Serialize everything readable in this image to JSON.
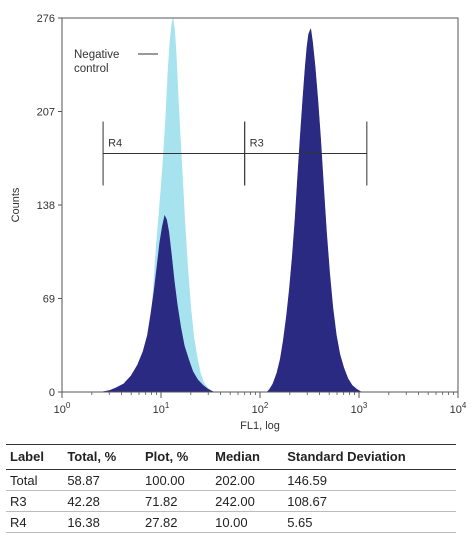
{
  "chart_data": {
    "type": "area",
    "xlabel": "FL1, log",
    "ylabel": "Counts",
    "x_scale": "log",
    "xlim": [
      1,
      10000
    ],
    "ylim": [
      0,
      276
    ],
    "x_ticks": [
      {
        "value": 1,
        "base": "10",
        "exp": "0"
      },
      {
        "value": 10,
        "base": "10",
        "exp": "1"
      },
      {
        "value": 100,
        "base": "10",
        "exp": "2"
      },
      {
        "value": 1000,
        "base": "10",
        "exp": "3"
      },
      {
        "value": 10000,
        "base": "10",
        "exp": "4"
      }
    ],
    "y_ticks": [
      0,
      69,
      138,
      207,
      276
    ],
    "grid": false,
    "series": [
      {
        "name": "Negative control",
        "color": "#a6e3ef",
        "points": [
          [
            5.0,
            0
          ],
          [
            5.6,
            2
          ],
          [
            6.3,
            8
          ],
          [
            7.0,
            22
          ],
          [
            7.7,
            45
          ],
          [
            8.3,
            72
          ],
          [
            8.9,
            105
          ],
          [
            9.5,
            130
          ],
          [
            10.0,
            150
          ],
          [
            10.6,
            175
          ],
          [
            11.2,
            205
          ],
          [
            11.8,
            238
          ],
          [
            12.3,
            258
          ],
          [
            12.8,
            270
          ],
          [
            13.2,
            276
          ],
          [
            13.7,
            268
          ],
          [
            14.2,
            250
          ],
          [
            14.8,
            222
          ],
          [
            15.6,
            190
          ],
          [
            16.5,
            158
          ],
          [
            17.5,
            122
          ],
          [
            18.7,
            90
          ],
          [
            20.0,
            62
          ],
          [
            21.5,
            40
          ],
          [
            23.2,
            25
          ],
          [
            25.0,
            14
          ],
          [
            27.0,
            7
          ],
          [
            29.5,
            3
          ],
          [
            32.0,
            1
          ],
          [
            34.0,
            0
          ]
        ]
      },
      {
        "name": "",
        "color": "#2a2a82",
        "points": [
          [
            2.5,
            0
          ],
          [
            3.0,
            1
          ],
          [
            3.5,
            3
          ],
          [
            4.2,
            6
          ],
          [
            5.0,
            12
          ],
          [
            5.8,
            20
          ],
          [
            6.6,
            30
          ],
          [
            7.3,
            42
          ],
          [
            7.9,
            58
          ],
          [
            8.5,
            74
          ],
          [
            9.1,
            92
          ],
          [
            9.7,
            110
          ],
          [
            10.3,
            122
          ],
          [
            10.9,
            130
          ],
          [
            11.4,
            127
          ],
          [
            12.0,
            118
          ],
          [
            12.7,
            102
          ],
          [
            13.6,
            82
          ],
          [
            14.6,
            64
          ],
          [
            15.8,
            48
          ],
          [
            17.2,
            34
          ],
          [
            19.0,
            24
          ],
          [
            21.0,
            15
          ],
          [
            23.5,
            9
          ],
          [
            26.5,
            5
          ],
          [
            30.0,
            2
          ],
          [
            34.0,
            0
          ],
          [
            45.0,
            0
          ],
          [
            60.0,
            0
          ],
          [
            80.0,
            0
          ],
          [
            100.0,
            0
          ],
          [
            118.0,
            0
          ],
          [
            125.0,
            2
          ],
          [
            135.0,
            6
          ],
          [
            148.0,
            14
          ],
          [
            160.0,
            24
          ],
          [
            172.0,
            38
          ],
          [
            185.0,
            56
          ],
          [
            198.0,
            76
          ],
          [
            212.0,
            100
          ],
          [
            226.0,
            128
          ],
          [
            240.0,
            158
          ],
          [
            255.0,
            188
          ],
          [
            270.0,
            215
          ],
          [
            285.0,
            238
          ],
          [
            298.0,
            254
          ],
          [
            310.0,
            264
          ],
          [
            325.0,
            268
          ],
          [
            340.0,
            258
          ],
          [
            360.0,
            240
          ],
          [
            385.0,
            214
          ],
          [
            410.0,
            186
          ],
          [
            440.0,
            150
          ],
          [
            470.0,
            118
          ],
          [
            505.0,
            88
          ],
          [
            545.0,
            62
          ],
          [
            590.0,
            42
          ],
          [
            640.0,
            28
          ],
          [
            700.0,
            18
          ],
          [
            770.0,
            10
          ],
          [
            850.0,
            5
          ],
          [
            950.0,
            2
          ],
          [
            1050.0,
            0
          ]
        ]
      }
    ],
    "regions": [
      {
        "label": "R4",
        "x": [
          2.6,
          70
        ],
        "y": 176
      },
      {
        "label": "R3",
        "x": [
          70,
          1200
        ],
        "y": 176
      }
    ],
    "annotations": [
      {
        "text_lines": [
          "Negative",
          "control"
        ]
      }
    ]
  },
  "table": {
    "headers": [
      "Label",
      "Total, %",
      "Plot, %",
      "Median",
      "Standard Deviation"
    ],
    "rows": [
      [
        "Total",
        "58.87",
        "100.00",
        "202.00",
        "146.59"
      ],
      [
        "R3",
        "42.28",
        "71.82",
        "242.00",
        "108.67"
      ],
      [
        "R4",
        "16.38",
        "27.82",
        "10.00",
        "5.65"
      ]
    ]
  }
}
